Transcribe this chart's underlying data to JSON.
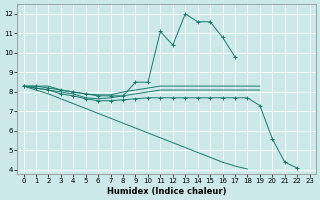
{
  "xlabel": "Humidex (Indice chaleur)",
  "ylabel": "",
  "bg_color": "#cce8e8",
  "grid_color": "#ffffff",
  "line_color": "#1a7a6e",
  "xlim": [
    -0.5,
    23.5
  ],
  "ylim": [
    3.8,
    12.5
  ],
  "yticks": [
    4,
    5,
    6,
    7,
    8,
    9,
    10,
    11,
    12
  ],
  "xticks": [
    0,
    1,
    2,
    3,
    4,
    5,
    6,
    7,
    8,
    9,
    10,
    11,
    12,
    13,
    14,
    15,
    16,
    17,
    18,
    19,
    20,
    21,
    22,
    23
  ],
  "series": [
    {
      "x": [
        0,
        1,
        2,
        3,
        4,
        5,
        6,
        7,
        8,
        9,
        10,
        11,
        12,
        13,
        14,
        15,
        16,
        17
      ],
      "y": [
        8.3,
        8.3,
        8.2,
        8.1,
        8.0,
        7.9,
        7.8,
        7.8,
        7.8,
        8.5,
        8.5,
        11.1,
        10.4,
        12.0,
        11.6,
        11.6,
        10.8,
        9.8
      ],
      "marker": "+"
    },
    {
      "x": [
        0,
        1,
        2,
        3,
        4,
        5,
        6,
        7,
        8,
        9,
        10,
        11,
        12,
        13,
        14,
        15,
        16,
        17,
        18,
        19
      ],
      "y": [
        8.3,
        8.3,
        8.3,
        8.1,
        8.0,
        7.9,
        7.85,
        7.85,
        8.0,
        8.1,
        8.2,
        8.3,
        8.3,
        8.3,
        8.3,
        8.3,
        8.3,
        8.3,
        8.3,
        8.3
      ],
      "marker": null
    },
    {
      "x": [
        0,
        1,
        2,
        3,
        4,
        5,
        6,
        7,
        8,
        9,
        10,
        11,
        12,
        13,
        14,
        15,
        16,
        17,
        18,
        19
      ],
      "y": [
        8.3,
        8.2,
        8.1,
        8.0,
        7.9,
        7.7,
        7.65,
        7.7,
        7.8,
        7.9,
        8.0,
        8.1,
        8.1,
        8.1,
        8.1,
        8.1,
        8.1,
        8.1,
        8.1,
        8.1
      ],
      "marker": null
    },
    {
      "x": [
        0,
        1,
        2,
        3,
        4,
        5,
        6,
        7,
        8,
        9,
        10,
        11,
        12,
        13,
        14,
        15,
        16,
        17,
        18,
        19,
        20,
        21,
        22
      ],
      "y": [
        8.3,
        8.2,
        8.1,
        7.9,
        7.8,
        7.65,
        7.55,
        7.55,
        7.6,
        7.65,
        7.7,
        7.7,
        7.7,
        7.7,
        7.7,
        7.7,
        7.7,
        7.7,
        7.7,
        7.3,
        5.6,
        4.4,
        4.1
      ],
      "marker": "+"
    },
    {
      "x": [
        0,
        1,
        2,
        3,
        4,
        5,
        6,
        7,
        8,
        9,
        10,
        11,
        12,
        13,
        14,
        15,
        16,
        17,
        18,
        19,
        20,
        21,
        22,
        23
      ],
      "y": [
        8.3,
        8.1,
        7.9,
        7.65,
        7.4,
        7.15,
        6.9,
        6.65,
        6.4,
        6.15,
        5.9,
        5.65,
        5.4,
        5.15,
        4.9,
        4.65,
        4.4,
        4.2,
        4.05,
        null,
        null,
        null,
        null,
        null
      ],
      "marker": null
    }
  ]
}
